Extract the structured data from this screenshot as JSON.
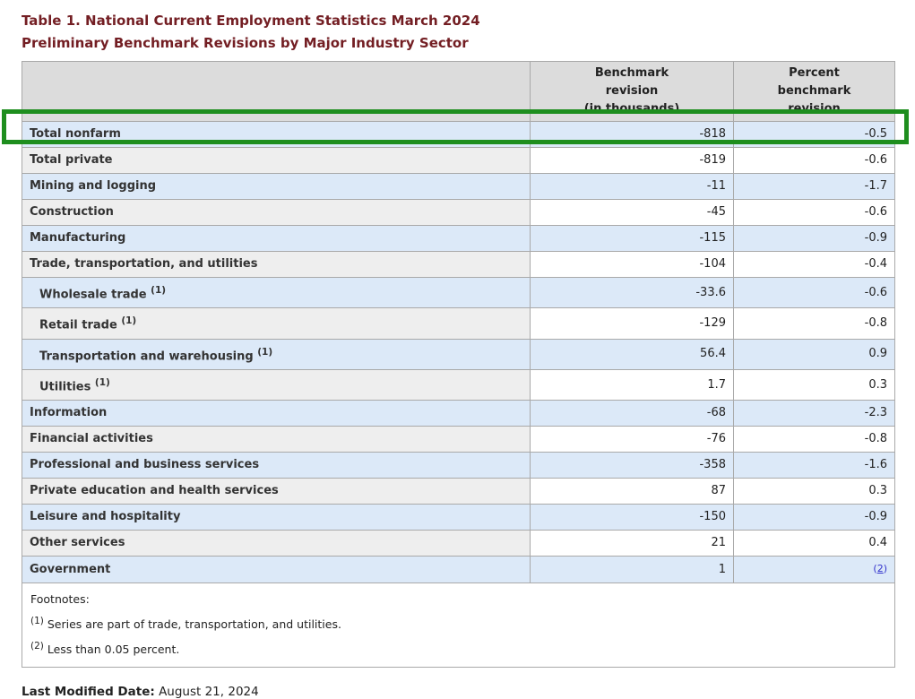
{
  "page": {
    "title": "Table 1. National Current Employment Statistics March 2024\nPreliminary Benchmark Revisions by Major Industry Sector"
  },
  "table": {
    "header": {
      "label_col": "",
      "benchmark_col": "Benchmark\nrevision\n(in thousands)",
      "percent_col": "Percent\nbenchmark\nrevision"
    },
    "rows": [
      {
        "label": "Total nonfarm",
        "indent": false,
        "footnote": null,
        "benchmark": "-818",
        "percent": "-0.5",
        "highlighted": true
      },
      {
        "label": "Total private",
        "indent": false,
        "footnote": null,
        "benchmark": "-819",
        "percent": "-0.6"
      },
      {
        "label": "Mining and logging",
        "indent": false,
        "footnote": null,
        "benchmark": "-11",
        "percent": "-1.7"
      },
      {
        "label": "Construction",
        "indent": false,
        "footnote": null,
        "benchmark": "-45",
        "percent": "-0.6"
      },
      {
        "label": "Manufacturing",
        "indent": false,
        "footnote": null,
        "benchmark": "-115",
        "percent": "-0.9"
      },
      {
        "label": "Trade, transportation, and utilities",
        "indent": false,
        "footnote": null,
        "benchmark": "-104",
        "percent": "-0.4"
      },
      {
        "label": "Wholesale trade",
        "indent": true,
        "footnote": "1",
        "benchmark": "-33.6",
        "percent": "-0.6"
      },
      {
        "label": "Retail trade",
        "indent": true,
        "footnote": "1",
        "benchmark": "-129",
        "percent": "-0.8"
      },
      {
        "label": "Transportation and warehousing",
        "indent": true,
        "footnote": "1",
        "benchmark": "56.4",
        "percent": "0.9"
      },
      {
        "label": "Utilities",
        "indent": true,
        "footnote": "1",
        "benchmark": "1.7",
        "percent": "0.3"
      },
      {
        "label": "Information",
        "indent": false,
        "footnote": null,
        "benchmark": "-68",
        "percent": "-2.3"
      },
      {
        "label": "Financial activities",
        "indent": false,
        "footnote": null,
        "benchmark": "-76",
        "percent": "-0.8"
      },
      {
        "label": "Professional and business services",
        "indent": false,
        "footnote": null,
        "benchmark": "-358",
        "percent": "-1.6"
      },
      {
        "label": "Private education and health services",
        "indent": false,
        "footnote": null,
        "benchmark": "87",
        "percent": "0.3"
      },
      {
        "label": "Leisure and hospitality",
        "indent": false,
        "footnote": null,
        "benchmark": "-150",
        "percent": "-0.9"
      },
      {
        "label": "Other services",
        "indent": false,
        "footnote": null,
        "benchmark": "21",
        "percent": "0.4"
      },
      {
        "label": "Government",
        "indent": false,
        "footnote": null,
        "benchmark": "1",
        "percent": "",
        "percent_footnote_link": "2"
      }
    ],
    "footnotes": {
      "heading": "Footnotes:",
      "items": [
        {
          "marker": "1",
          "text": "Series are part of trade, transportation, and utilities."
        },
        {
          "marker": "2",
          "text": "Less than 0.05 percent."
        }
      ]
    }
  },
  "last_modified": {
    "label": "Last Modified Date:",
    "value": "August 21, 2024"
  },
  "highlight": {
    "target_row": "Total nonfarm",
    "color": "#1e8e1e"
  },
  "colors": {
    "title_text": "#731e23",
    "header_bg": "#dcdcdc",
    "row_blue_bg": "#dce9f8",
    "row_gray_label_bg": "#eeeeee",
    "table_border": "#a9a9a9",
    "footnote_link_blue": "#3333cc"
  }
}
